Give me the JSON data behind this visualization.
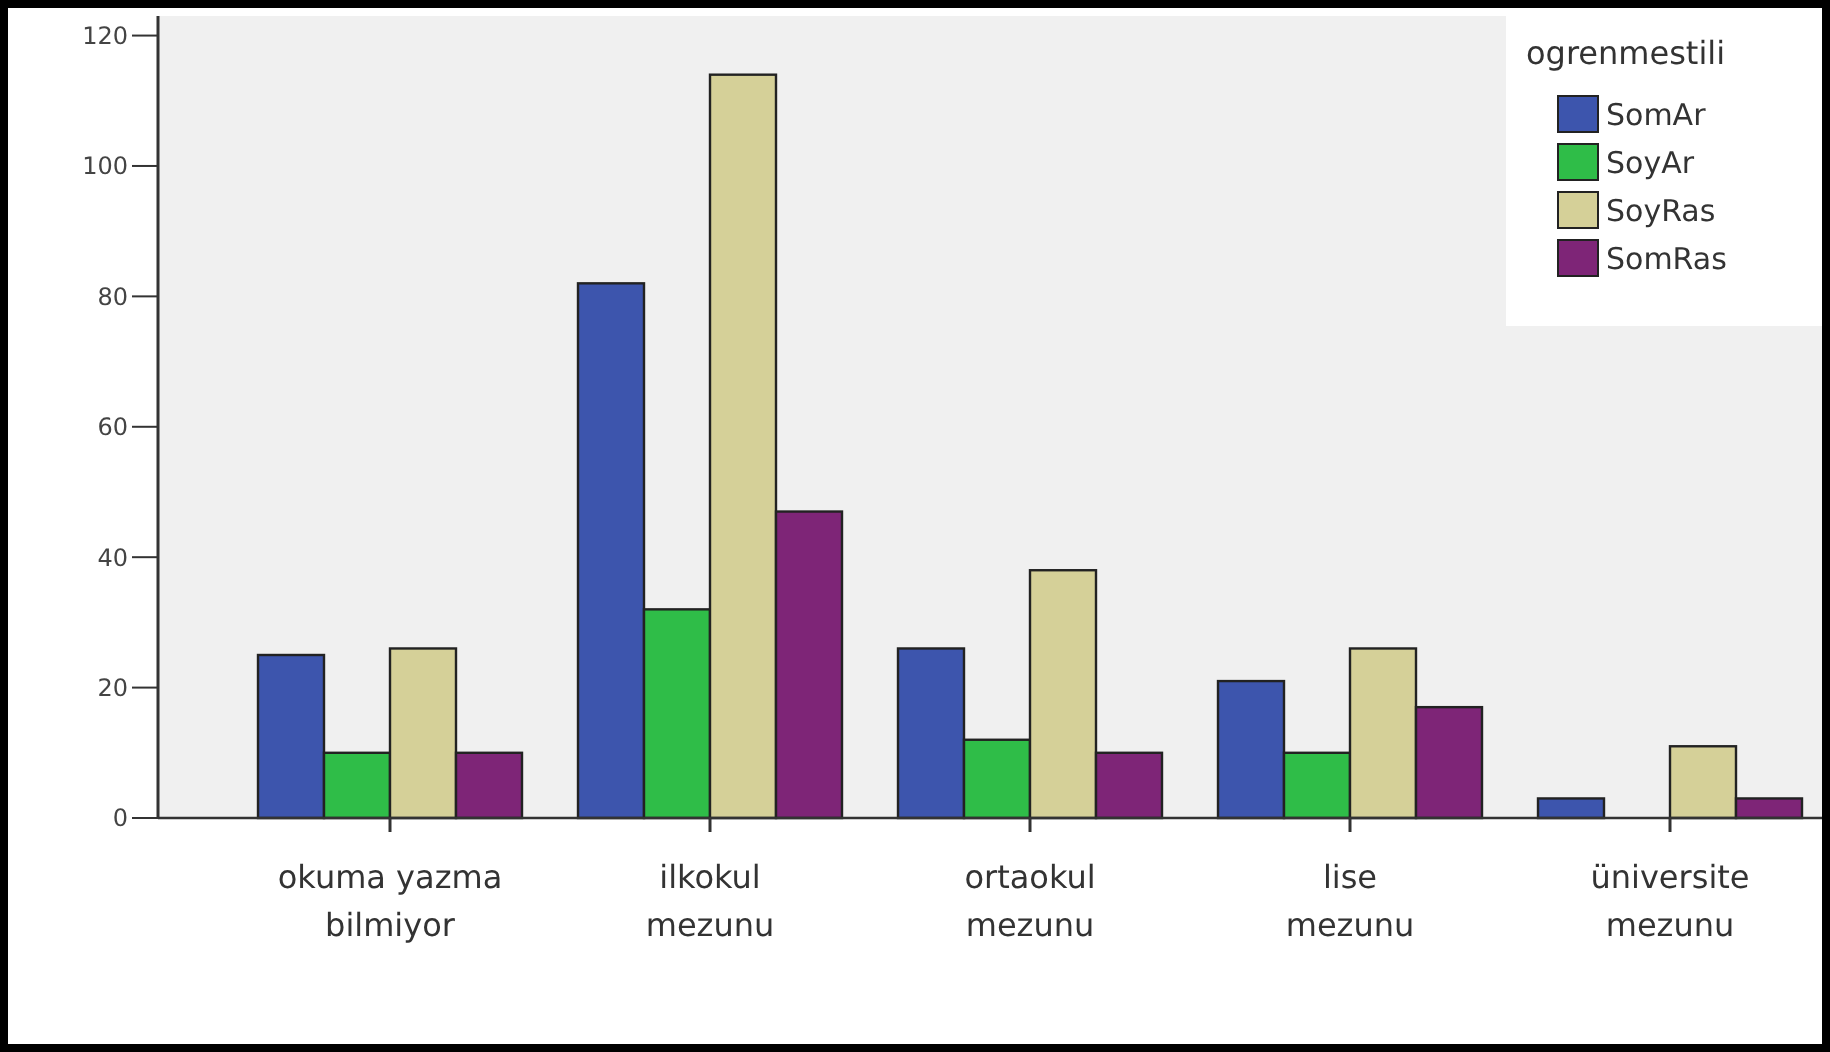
{
  "chart_data": {
    "type": "bar",
    "categories": [
      "okuma yazma bilmiyor",
      "ilkokul mezunu",
      "ortaokul mezunu",
      "lise mezunu",
      "üniversite mezunu"
    ],
    "legend_title": "ogrenmestili",
    "legend": "top right",
    "grid": false,
    "ylim": [
      0,
      123
    ],
    "yticks": [
      0,
      20,
      40,
      60,
      80,
      100,
      120
    ],
    "series": [
      {
        "name": "SomAr",
        "color": "#3d55ad",
        "values": [
          25,
          82,
          26,
          21,
          3
        ]
      },
      {
        "name": "SoyAr",
        "color": "#2fbd48",
        "values": [
          10,
          32,
          12,
          10,
          0
        ]
      },
      {
        "name": "SoyRas",
        "color": "#d5d098",
        "values": [
          26,
          114,
          38,
          26,
          11
        ]
      },
      {
        "name": "SomRas",
        "color": "#7e2577",
        "values": [
          10,
          47,
          10,
          17,
          3
        ]
      }
    ]
  }
}
